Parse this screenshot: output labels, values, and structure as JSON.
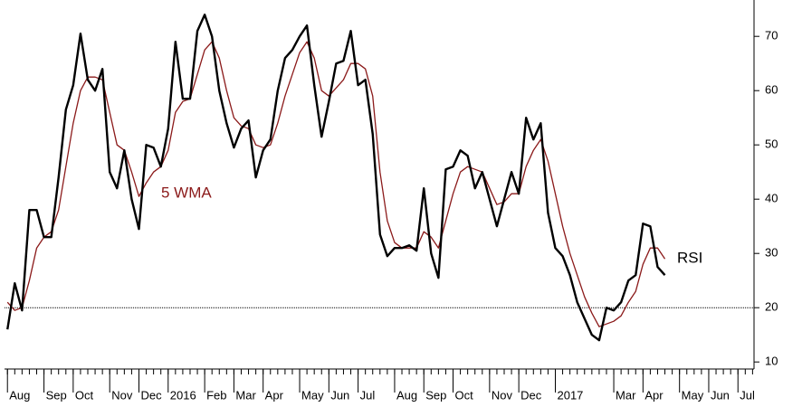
{
  "chart_data": {
    "type": "line",
    "annotations": [
      "5 WMA",
      "RSI"
    ],
    "series": [
      {
        "name": "RSI",
        "color": "#000000",
        "values": [
          16,
          24.5,
          19.5,
          38,
          38,
          33,
          33,
          44,
          56.5,
          61,
          70.5,
          62,
          60,
          64,
          45,
          42,
          49,
          40,
          34.5,
          50,
          49.5,
          46,
          53,
          69,
          58.5,
          58.5,
          71,
          74,
          70,
          60,
          54,
          49.5,
          53,
          54.5,
          44,
          49,
          51,
          60,
          66,
          67.5,
          70,
          72,
          61,
          51.5,
          58,
          65,
          65.5,
          71,
          61,
          62,
          52,
          33.5,
          29.5,
          31,
          31,
          31.5,
          30.5,
          42,
          30,
          25.5,
          45.5,
          46,
          49,
          48,
          42,
          45,
          40,
          35,
          40,
          45,
          41,
          55,
          51,
          54,
          37.5,
          31,
          29.5,
          26,
          21,
          18,
          15,
          14,
          20,
          19.5,
          21,
          25,
          26,
          35.5,
          35,
          27.5,
          26
        ]
      },
      {
        "name": "5 WMA",
        "color": "#8b1a1a",
        "values": [
          21,
          19.5,
          20,
          25,
          31,
          33,
          34,
          38,
          46,
          54,
          60,
          62.5,
          62.5,
          62,
          56,
          50,
          49,
          45,
          40.5,
          43,
          45,
          46,
          49,
          56,
          58,
          58.5,
          63,
          67.5,
          69,
          66,
          60,
          55,
          53.5,
          53,
          50,
          49.5,
          50,
          54,
          59,
          63,
          67,
          69,
          66,
          60,
          59,
          60.5,
          62,
          65,
          65,
          64,
          59,
          45,
          36,
          32,
          31,
          31,
          31,
          34,
          33,
          31,
          36,
          41,
          45,
          46,
          45.5,
          45,
          42,
          39,
          39.5,
          41,
          41,
          46,
          49,
          51,
          47,
          41,
          35,
          30,
          26,
          22,
          19,
          16.5,
          17,
          17.5,
          18.5,
          21,
          23,
          28,
          31,
          31,
          29
        ]
      }
    ],
    "xlim": [
      -0.4,
      102.2
    ],
    "xticks": [
      {
        "value": 0,
        "label": "Aug"
      },
      {
        "value": 5,
        "label": "Sep"
      },
      {
        "value": 9,
        "label": "Oct"
      },
      {
        "value": 14,
        "label": "Nov"
      },
      {
        "value": 18,
        "label": "Dec"
      },
      {
        "value": 22,
        "label": "2016"
      },
      {
        "value": 27,
        "label": "Feb"
      },
      {
        "value": 31,
        "label": "Mar"
      },
      {
        "value": 35,
        "label": "Apr"
      },
      {
        "value": 40,
        "label": "May"
      },
      {
        "value": 44,
        "label": "Jun"
      },
      {
        "value": 48,
        "label": "Jul"
      },
      {
        "value": 53,
        "label": "Aug"
      },
      {
        "value": 57,
        "label": "Sep"
      },
      {
        "value": 61,
        "label": "Oct"
      },
      {
        "value": 66,
        "label": "Nov"
      },
      {
        "value": 70,
        "label": "Dec"
      },
      {
        "value": 75,
        "label": "2017"
      },
      {
        "value": 83,
        "label": "Mar"
      },
      {
        "value": 87,
        "label": "Apr"
      },
      {
        "value": 92,
        "label": "May"
      },
      {
        "value": 96,
        "label": "Jun"
      },
      {
        "value": 100,
        "label": "Jul"
      }
    ],
    "ylim": [
      8.7,
      76.7
    ],
    "yticks": [
      10,
      20,
      30,
      40,
      50,
      60,
      70
    ],
    "hline": 20
  }
}
